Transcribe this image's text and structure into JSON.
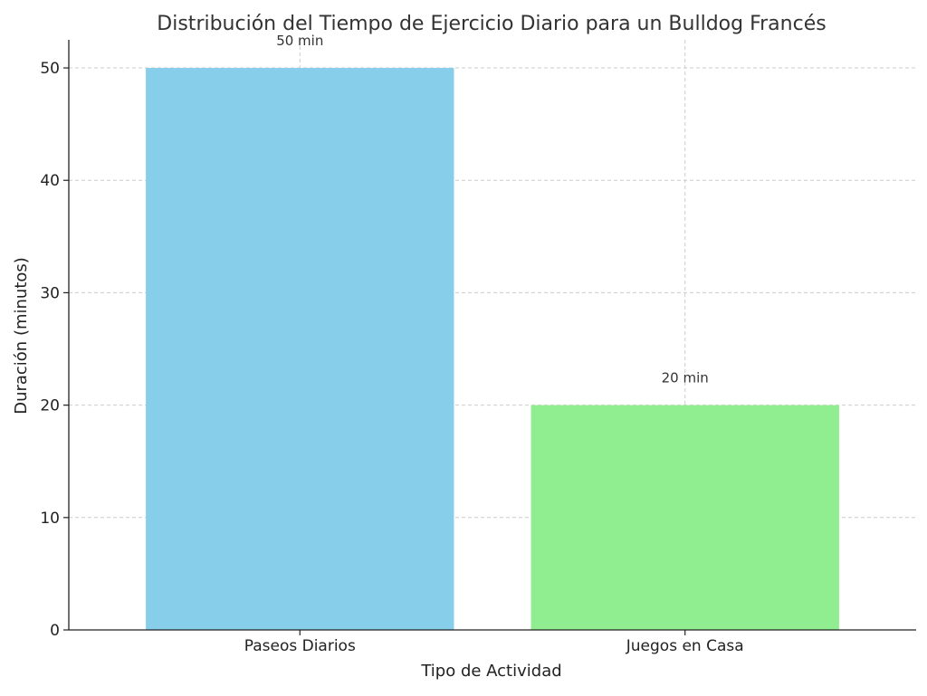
{
  "chart_data": {
    "type": "bar",
    "title": "Distribución del Tiempo de Ejercicio Diario para un Bulldog Francés",
    "xlabel": "Tipo de Actividad",
    "ylabel": "Duración (minutos)",
    "categories": [
      "Paseos Diarios",
      "Juegos en Casa"
    ],
    "values": [
      50,
      20
    ],
    "data_labels": [
      "50 min",
      "20 min"
    ],
    "colors": [
      "#87ceeb",
      "#90ee90"
    ],
    "ylim": [
      0,
      52.5
    ],
    "yticks": [
      0,
      10,
      20,
      30,
      40,
      50
    ],
    "grid": true
  }
}
